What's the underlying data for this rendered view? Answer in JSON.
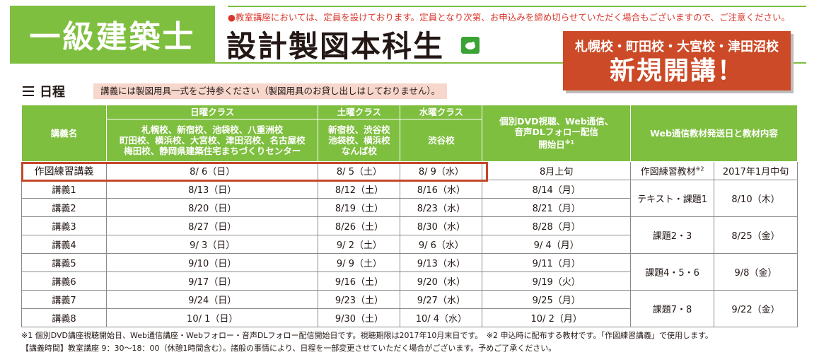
{
  "header": {
    "badge": "一級建築士",
    "notice": "●教室講座においては、定員を設けております。定員となり次第、お申込みを締め切らせていただく場合もございますので、ご注意ください。",
    "course_title": "設計製図本科生",
    "new_schools": "札幌校・町田校・大宮校・津田沼校",
    "new_label": "新規開講！"
  },
  "schedule": {
    "title": "日程",
    "note": "講義には製図用具一式をご持参ください（製図用具のお貸し出しはしておりません）。"
  },
  "table": {
    "headers": {
      "lecture_name": "講義名",
      "sunday_class": "日曜クラス",
      "sunday_schools": "札幌校、新宿校、池袋校、八重洲校\n町田校、横浜校、大宮校、津田沼校、名古屋校\n梅田校、静岡県建築住宅まちづくりセンター",
      "saturday_class": "土曜クラス",
      "saturday_schools": "新宿校、渋谷校\n池袋校、横浜校\nなんば校",
      "wednesday_class": "水曜クラス",
      "wednesday_schools": "渋谷校",
      "dvd": "個別DVD視聴、Web通信、\n音声DLフォロー配信\n開始日",
      "dvd_sup": "※1",
      "web": "Web通信教材発送日と教材内容"
    },
    "first_row": {
      "name": "作図練習講義",
      "sun": "8/ 6（日）",
      "sat": "8/ 5（土）",
      "wed": "8/ 9（水）",
      "dvd": "8月上旬",
      "material": "作図練習教材",
      "material_sup": "※2",
      "ship": "2017年1月中旬"
    },
    "rows": [
      {
        "name": "講義1",
        "sun": "8/13（日）",
        "sat": "8/12（土）",
        "wed": "8/16（水）",
        "dvd": "8/14（月）"
      },
      {
        "name": "講義2",
        "sun": "8/20（日）",
        "sat": "8/19（土）",
        "wed": "8/23（水）",
        "dvd": "8/21（月）"
      },
      {
        "name": "講義3",
        "sun": "8/27（日）",
        "sat": "8/26（土）",
        "wed": "8/30（水）",
        "dvd": "8/28（月）"
      },
      {
        "name": "講義4",
        "sun": "9/ 3（日）",
        "sat": "9/ 2（土）",
        "wed": "9/ 6（水）",
        "dvd": "9/ 4（月）"
      },
      {
        "name": "講義5",
        "sun": "9/10（日）",
        "sat": "9/ 9（土）",
        "wed": "9/13（水）",
        "dvd": "9/11（月）"
      },
      {
        "name": "講義6",
        "sun": "9/17（日）",
        "sat": "9/16（土）",
        "wed": "9/20（水）",
        "dvd": "9/19（火）"
      },
      {
        "name": "講義7",
        "sun": "9/24（日）",
        "sat": "9/23（土）",
        "wed": "9/27（水）",
        "dvd": "9/25（月）"
      },
      {
        "name": "講義8",
        "sun": "10/ 1（日）",
        "sat": "9/30（土）",
        "wed": "10/ 4（水）",
        "dvd": "10/ 2（月）"
      }
    ],
    "materials": [
      {
        "material": "テキスト・課題1",
        "ship": "8/10（木）"
      },
      {
        "material": "課題2・3",
        "ship": "8/25（金）"
      },
      {
        "material": "課題4・5・6",
        "ship": "9/8（金）"
      },
      {
        "material": "課題7・8",
        "ship": "9/22（金）"
      }
    ]
  },
  "footnotes": {
    "line1": "※1 個別DVD講座視聴開始日、Web通信講座・Webフォロー・音声DLフォロー配信開始日です。視聴期限は2017年10月末日です。　※2 申込時に配布する教材です。「作図練習講義」で使用します。",
    "line2": "【講義時間】教室講座 9：30～18：00（休憩1時間含む）。諸般の事情により、日程を一部変更させていただく場合がございます。予めご了承ください。"
  },
  "colors": {
    "green": "#7fbf3f",
    "red": "#cc4a27",
    "highlight": "#c4472a",
    "note_bg": "#f7d6cc"
  }
}
